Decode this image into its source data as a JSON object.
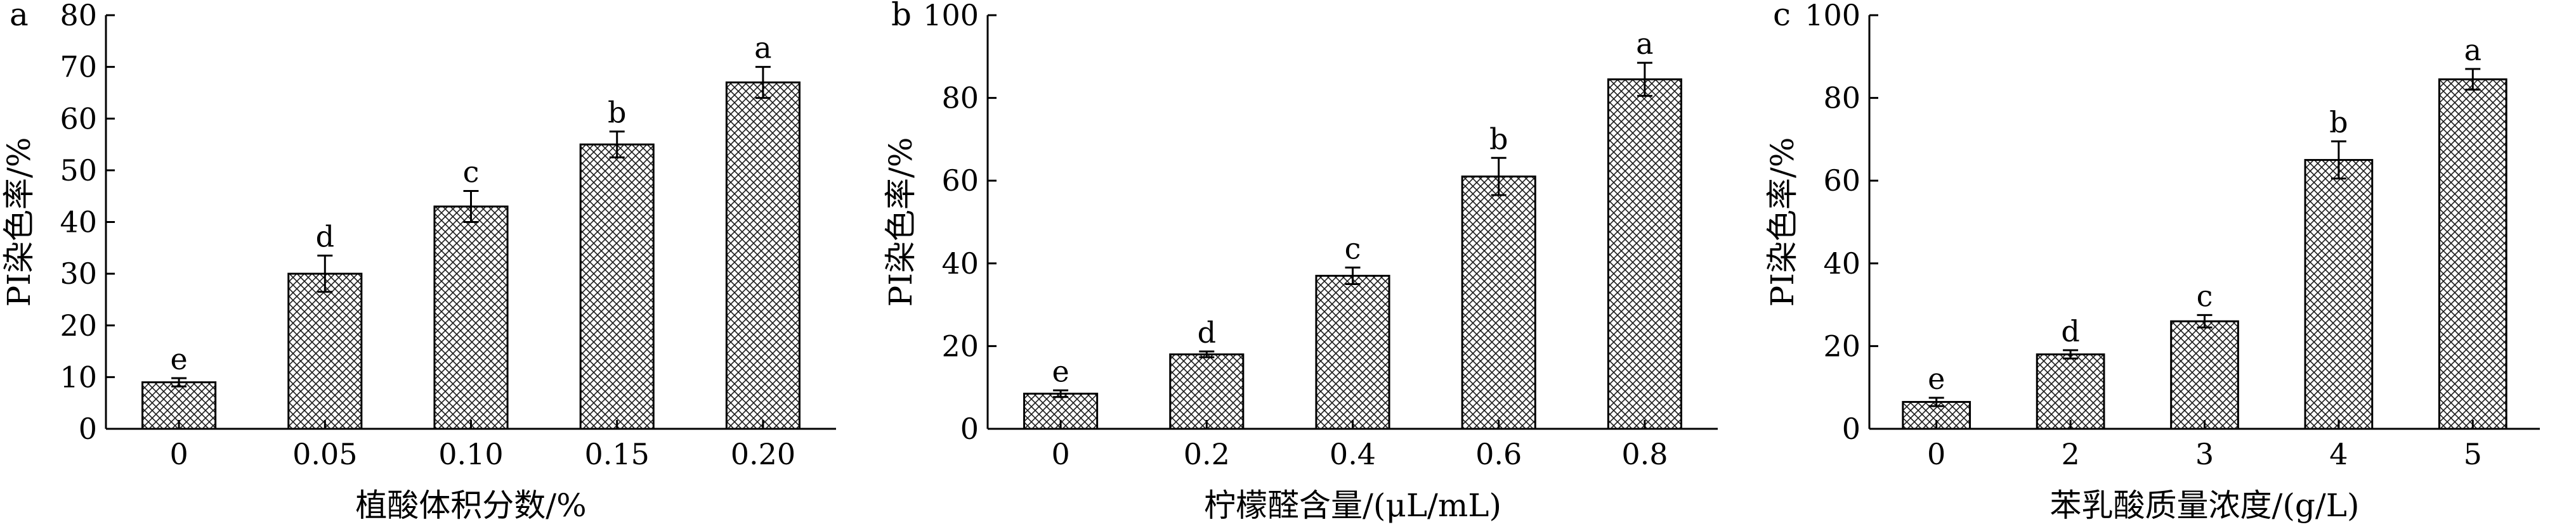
{
  "chart_data": [
    {
      "type": "bar",
      "panel_label": "a",
      "xlabel": "植酸体积分数/%",
      "ylabel": "PI染色率/%",
      "categories": [
        "0",
        "0.05",
        "0.10",
        "0.15",
        "0.20"
      ],
      "values": [
        9,
        30,
        43,
        55,
        67
      ],
      "errors": [
        0.8,
        3.5,
        3,
        2.5,
        3
      ],
      "significance": [
        "e",
        "d",
        "c",
        "b",
        "a"
      ],
      "ylim": [
        0,
        80
      ],
      "yticks": [
        "0",
        "10",
        "20",
        "30",
        "40",
        "50",
        "60",
        "70",
        "80"
      ],
      "bar_pattern": "crosshatch",
      "grid": false
    },
    {
      "type": "bar",
      "panel_label": "b",
      "xlabel": "柠檬醛含量/(μL/mL)",
      "ylabel": "PI染色率/%",
      "categories": [
        "0",
        "0.2",
        "0.4",
        "0.6",
        "0.8"
      ],
      "values": [
        8.5,
        18,
        37,
        61,
        84.5
      ],
      "errors": [
        0.8,
        0.7,
        2,
        4.5,
        4
      ],
      "significance": [
        "e",
        "d",
        "c",
        "b",
        "a"
      ],
      "ylim": [
        0,
        100
      ],
      "yticks": [
        "0",
        "20",
        "40",
        "60",
        "80",
        "100"
      ],
      "bar_pattern": "crosshatch",
      "grid": false
    },
    {
      "type": "bar",
      "panel_label": "c",
      "xlabel": "苯乳酸质量浓度/(g/L)",
      "ylabel": "PI染色率/%",
      "categories": [
        "0",
        "2",
        "3",
        "4",
        "5"
      ],
      "values": [
        6.5,
        18,
        26,
        65,
        84.5
      ],
      "errors": [
        1,
        1,
        1.5,
        4.5,
        2.5
      ],
      "significance": [
        "e",
        "d",
        "c",
        "b",
        "a"
      ],
      "ylim": [
        0,
        100
      ],
      "yticks": [
        "0",
        "20",
        "40",
        "60",
        "80",
        "100"
      ],
      "bar_pattern": "crosshatch",
      "grid": false
    }
  ]
}
